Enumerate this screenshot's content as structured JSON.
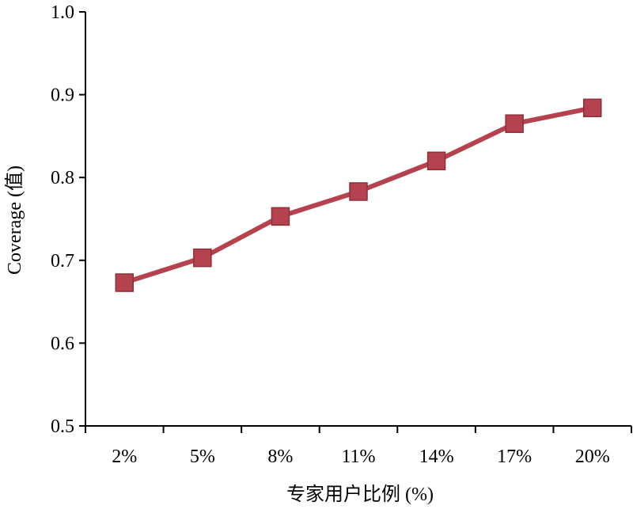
{
  "chart_data": {
    "type": "line",
    "title": "",
    "xlabel": "专家用户比例 (%)",
    "ylabel": "Coverage (值)",
    "categories": [
      "2%",
      "5%",
      "8%",
      "11%",
      "14%",
      "17%",
      "20%"
    ],
    "yticks": [
      "0.5",
      "0.6",
      "0.7",
      "0.8",
      "0.9",
      "1.0"
    ],
    "ylim": [
      0.5,
      1.0
    ],
    "grid": false,
    "series": [
      {
        "values": [
          0.673,
          0.703,
          0.753,
          0.783,
          0.82,
          0.865,
          0.884
        ],
        "color": "#b5434f",
        "marker": "square"
      }
    ]
  }
}
